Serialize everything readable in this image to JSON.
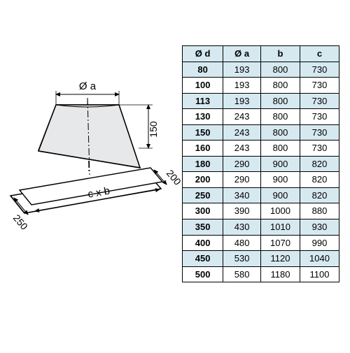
{
  "diagram": {
    "labels": {
      "diameter_a": "Ø a",
      "height_150": "150",
      "right_200": "200",
      "left_250": "250",
      "cxb": "c x b"
    },
    "stroke_color": "#000000",
    "fill_shape": "#e6e8e9",
    "dash_color": "#000000",
    "line_width": 1.5,
    "arrow_width": 1
  },
  "table": {
    "headers": [
      "Ø d",
      "Ø a",
      "b",
      "c"
    ],
    "shade_color": "#d6e9f0",
    "plain_color": "#ffffff",
    "border_color": "#000000",
    "rows": [
      {
        "d": "80",
        "a": "193",
        "b": "800",
        "c": "730",
        "shade": true
      },
      {
        "d": "100",
        "a": "193",
        "b": "800",
        "c": "730",
        "shade": false
      },
      {
        "d": "113",
        "a": "193",
        "b": "800",
        "c": "730",
        "shade": true
      },
      {
        "d": "130",
        "a": "243",
        "b": "800",
        "c": "730",
        "shade": false
      },
      {
        "d": "150",
        "a": "243",
        "b": "800",
        "c": "730",
        "shade": true
      },
      {
        "d": "160",
        "a": "243",
        "b": "800",
        "c": "730",
        "shade": false
      },
      {
        "d": "180",
        "a": "290",
        "b": "900",
        "c": "820",
        "shade": true
      },
      {
        "d": "200",
        "a": "290",
        "b": "900",
        "c": "820",
        "shade": false
      },
      {
        "d": "250",
        "a": "340",
        "b": "900",
        "c": "820",
        "shade": true
      },
      {
        "d": "300",
        "a": "390",
        "b": "1000",
        "c": "880",
        "shade": false
      },
      {
        "d": "350",
        "a": "430",
        "b": "1010",
        "c": "930",
        "shade": true
      },
      {
        "d": "400",
        "a": "480",
        "b": "1070",
        "c": "990",
        "shade": false
      },
      {
        "d": "450",
        "a": "530",
        "b": "1120",
        "c": "1040",
        "shade": true
      },
      {
        "d": "500",
        "a": "580",
        "b": "1180",
        "c": "1100",
        "shade": false
      }
    ]
  }
}
